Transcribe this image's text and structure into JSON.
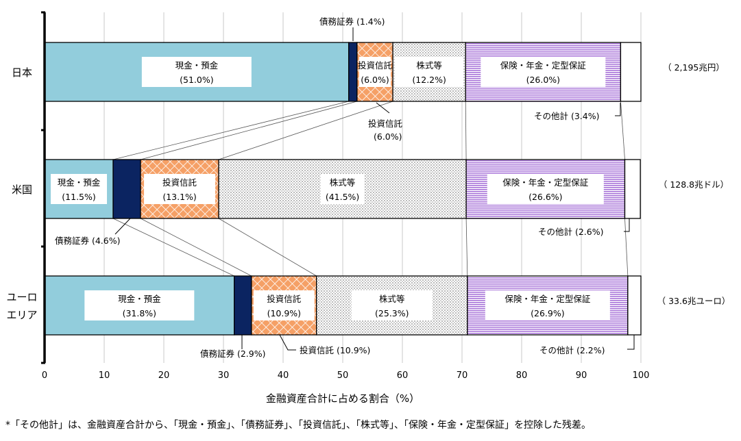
{
  "chart_data": {
    "type": "bar",
    "stacked": true,
    "orientation": "horizontal",
    "percent": true,
    "xlabel": "金融資産合計に占める割合（%）",
    "xlim": [
      0,
      100
    ],
    "xticks": [
      "0",
      "10",
      "20",
      "30",
      "40",
      "50",
      "60",
      "70",
      "80",
      "90",
      "100"
    ],
    "grid": true,
    "categories": [
      "日本",
      "米国",
      "ユーロ\nエリア"
    ],
    "category_lines": [
      [
        "日本"
      ],
      [
        "米国"
      ],
      [
        "ユーロ",
        "エリア"
      ]
    ],
    "totals": [
      "（ 2,195兆円）",
      "（ 128.8兆ドル）",
      "（ 33.6兆ユーロ）"
    ],
    "series": [
      {
        "name": "現金・預金",
        "values": [
          51.0,
          11.5,
          31.8
        ],
        "color": "#92cddc",
        "labels": [
          "(51.0%)",
          "(11.5%)",
          "(31.8%)"
        ]
      },
      {
        "name": "債務証券",
        "values": [
          1.4,
          4.6,
          2.9
        ],
        "color": "#0b2461",
        "labels": [
          "(1.4%)",
          "(4.6%)",
          "(2.9%)"
        ]
      },
      {
        "name": "投資信託",
        "values": [
          6.0,
          13.1,
          10.9
        ],
        "color": "#f5a066",
        "labels": [
          "(6.0%)",
          "(13.1%)",
          "(10.9%)"
        ]
      },
      {
        "name": "株式等",
        "values": [
          12.2,
          41.5,
          25.3
        ],
        "color": "#e9e9e9",
        "labels": [
          "(12.2%)",
          "(41.5%)",
          "(25.3%)"
        ]
      },
      {
        "name": "保険・年金・定型保証",
        "values": [
          26.0,
          26.6,
          26.9
        ],
        "color": "#c9a0e4",
        "labels": [
          "(26.0%)",
          "(26.6%)",
          "(26.9%)"
        ]
      },
      {
        "name": "その他計",
        "values": [
          3.4,
          2.6,
          2.2
        ],
        "color": "#ffffff",
        "labels": [
          "(3.4%)",
          "(2.6%)",
          "(2.2%)"
        ]
      }
    ]
  },
  "callouts": [
    {
      "text": "債務証券 (1.4%)"
    },
    {
      "text": "投資信託"
    },
    {
      "text": "(6.0%)"
    },
    {
      "text": "その他計 (3.4%)"
    },
    {
      "text": "債務証券 (4.6%)"
    },
    {
      "text": "その他計 (2.6%)"
    },
    {
      "text": "債務証券 (2.9%)"
    },
    {
      "text": "投資信託 (10.9%)"
    },
    {
      "text": "その他計 (2.2%)"
    }
  ],
  "footnote": "*「その他計」は、金融資産合計から、「現金・預金」、「債務証券」、「投資信託」、「株式等」、「保険・年金・定型保証」を控除した残差。"
}
